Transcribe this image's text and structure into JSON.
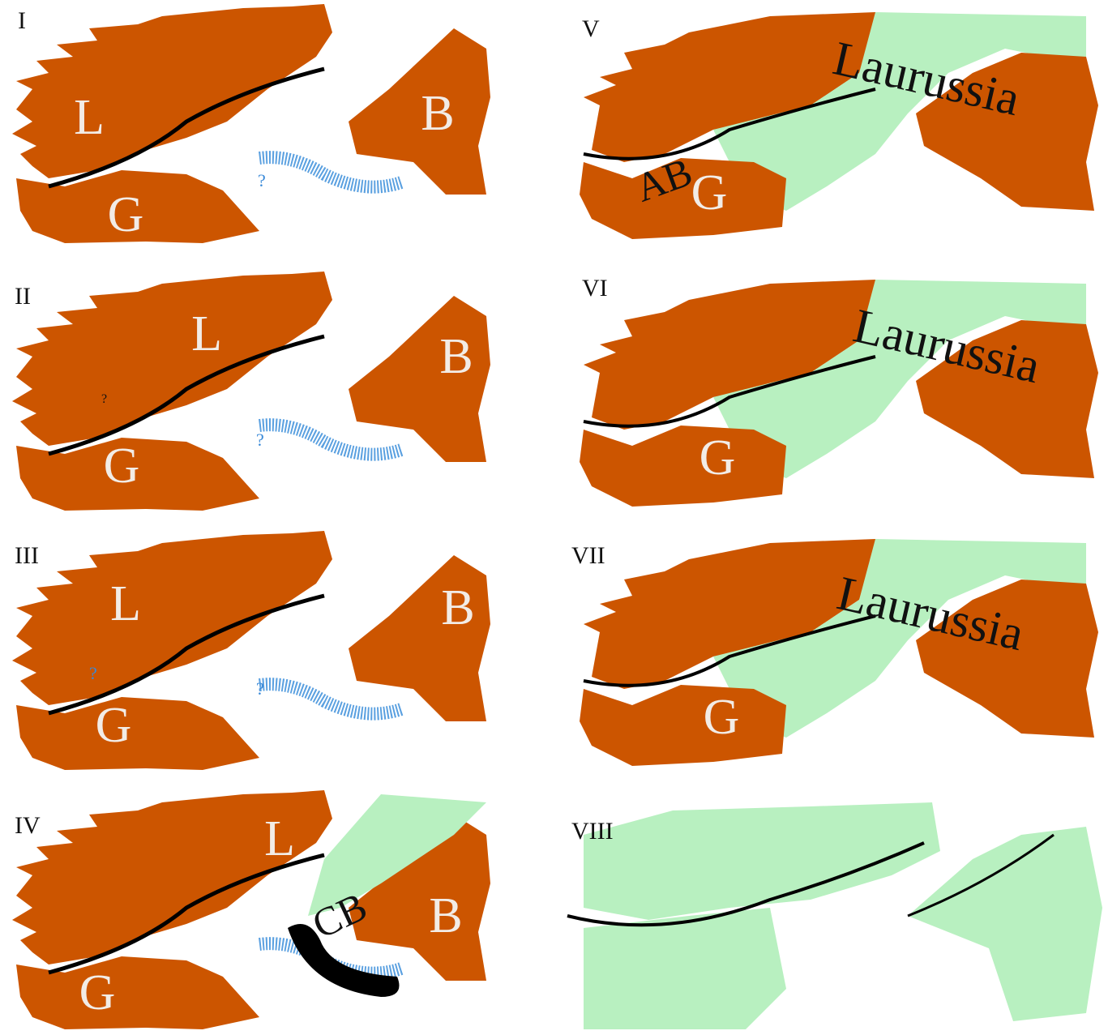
{
  "panels": [
    {
      "label": "I",
      "texts": [
        "L",
        "G",
        "B",
        "?"
      ]
    },
    {
      "label": "II",
      "texts": [
        "L",
        "B",
        "G",
        "?",
        "?"
      ]
    },
    {
      "label": "III",
      "texts": [
        "L",
        "B",
        "G",
        "?",
        "?"
      ]
    },
    {
      "label": "IV",
      "texts": [
        "L",
        "CB",
        "B",
        "G"
      ]
    },
    {
      "label": "V",
      "texts": [
        "Laurussia",
        "AB",
        "G"
      ]
    },
    {
      "label": "VI",
      "texts": [
        "Laurussia",
        "G"
      ]
    },
    {
      "label": "VII",
      "texts": [
        "Laurussia",
        "G"
      ]
    },
    {
      "label": "VIII",
      "texts": []
    }
  ]
}
